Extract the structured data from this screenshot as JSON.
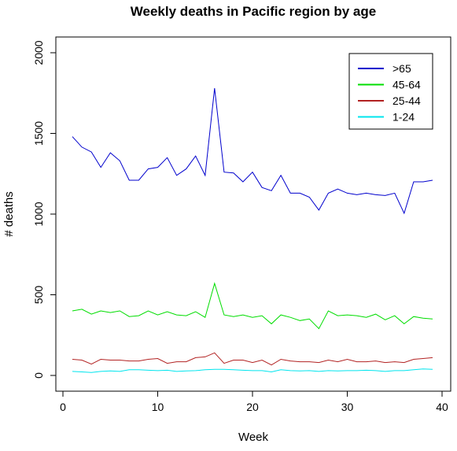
{
  "chart_data": {
    "type": "line",
    "title": "Weekly deaths in Pacific region by age",
    "xlabel": "Week",
    "ylabel": "# deaths",
    "xlim": [
      0,
      40
    ],
    "ylim": [
      0,
      2000
    ],
    "xticks": [
      0,
      10,
      20,
      30,
      40
    ],
    "yticks": [
      0,
      500,
      1000,
      1500,
      2000
    ],
    "grid": false,
    "legend_position": "top-right",
    "x": [
      1,
      2,
      3,
      4,
      5,
      6,
      7,
      8,
      9,
      10,
      11,
      12,
      13,
      14,
      15,
      16,
      17,
      18,
      19,
      20,
      21,
      22,
      23,
      24,
      25,
      26,
      27,
      28,
      29,
      30,
      31,
      32,
      33,
      34,
      35,
      36,
      37,
      38,
      39
    ],
    "series": [
      {
        "name": ">65",
        "color": "#0000cd",
        "values": [
          1480,
          1415,
          1385,
          1290,
          1380,
          1330,
          1210,
          1210,
          1280,
          1290,
          1350,
          1240,
          1280,
          1360,
          1240,
          1780,
          1260,
          1255,
          1200,
          1260,
          1165,
          1145,
          1240,
          1130,
          1130,
          1105,
          1025,
          1130,
          1155,
          1130,
          1120,
          1130,
          1120,
          1115,
          1130,
          1005,
          1200,
          1200,
          1210
        ]
      },
      {
        "name": "45-64",
        "color": "#00dd00",
        "values": [
          400,
          410,
          380,
          400,
          390,
          400,
          365,
          370,
          400,
          375,
          395,
          375,
          370,
          395,
          360,
          570,
          375,
          365,
          375,
          360,
          370,
          320,
          375,
          360,
          340,
          350,
          290,
          400,
          370,
          375,
          370,
          360,
          380,
          345,
          370,
          320,
          365,
          355,
          350
        ]
      },
      {
        "name": "25-44",
        "color": "#b22222",
        "values": [
          100,
          95,
          70,
          100,
          95,
          95,
          90,
          90,
          100,
          105,
          75,
          85,
          85,
          110,
          115,
          140,
          75,
          95,
          95,
          80,
          95,
          65,
          100,
          90,
          85,
          85,
          80,
          95,
          85,
          100,
          85,
          85,
          90,
          80,
          85,
          80,
          100,
          105,
          110
        ]
      },
      {
        "name": "1-24",
        "color": "#00e5ee",
        "values": [
          25,
          22,
          18,
          25,
          28,
          25,
          35,
          35,
          32,
          30,
          32,
          25,
          28,
          30,
          35,
          38,
          38,
          35,
          32,
          30,
          30,
          22,
          35,
          30,
          28,
          30,
          25,
          30,
          28,
          30,
          30,
          32,
          30,
          25,
          30,
          30,
          35,
          40,
          38
        ]
      }
    ]
  }
}
